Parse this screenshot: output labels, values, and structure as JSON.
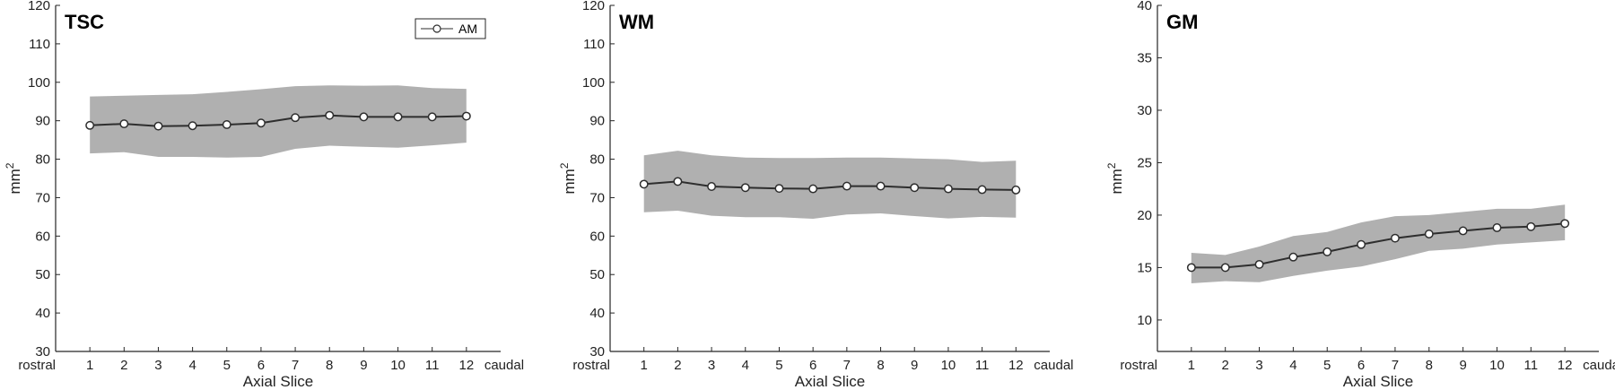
{
  "chart_data": [
    {
      "type": "line",
      "title": "TSC",
      "xlabel": "Axial Slice",
      "ylabel": "mm",
      "ylabel_superscript": "2",
      "x": [
        1,
        2,
        3,
        4,
        5,
        6,
        7,
        8,
        9,
        10,
        11,
        12
      ],
      "x_tick_labels": [
        "1",
        "2",
        "3",
        "4",
        "5",
        "6",
        "7",
        "8",
        "9",
        "10",
        "11",
        "12"
      ],
      "x_left_label": "rostral",
      "x_right_label": "caudal",
      "xlim": [
        0,
        13
      ],
      "ylim": [
        30,
        120
      ],
      "yticks": [
        30,
        40,
        50,
        60,
        70,
        80,
        90,
        100,
        110,
        120
      ],
      "legend": {
        "label": "AM",
        "placement": "top-right"
      },
      "series": [
        {
          "name": "AM",
          "values": [
            88.8,
            89.2,
            88.6,
            88.7,
            89.0,
            89.4,
            90.8,
            91.4,
            91.0,
            91.0,
            91.0,
            91.2
          ],
          "band_upper": [
            96.3,
            96.5,
            96.7,
            96.9,
            97.5,
            98.2,
            99.0,
            99.2,
            99.1,
            99.2,
            98.5,
            98.3
          ],
          "band_lower": [
            81.5,
            81.8,
            80.6,
            80.6,
            80.4,
            80.6,
            82.7,
            83.5,
            83.2,
            83.0,
            83.6,
            84.3
          ]
        }
      ]
    },
    {
      "type": "line",
      "title": "WM",
      "xlabel": "Axial Slice",
      "ylabel": "mm",
      "ylabel_superscript": "2",
      "x": [
        1,
        2,
        3,
        4,
        5,
        6,
        7,
        8,
        9,
        10,
        11,
        12
      ],
      "x_tick_labels": [
        "1",
        "2",
        "3",
        "4",
        "5",
        "6",
        "7",
        "8",
        "9",
        "10",
        "11",
        "12"
      ],
      "x_left_label": "rostral",
      "x_right_label": "caudal",
      "xlim": [
        0,
        13
      ],
      "ylim": [
        30,
        120
      ],
      "yticks": [
        30,
        40,
        50,
        60,
        70,
        80,
        90,
        100,
        110,
        120
      ],
      "series": [
        {
          "name": "AM",
          "values": [
            73.5,
            74.2,
            72.9,
            72.6,
            72.4,
            72.3,
            73.0,
            73.0,
            72.6,
            72.3,
            72.1,
            72.0
          ],
          "band_upper": [
            81.0,
            82.2,
            81.0,
            80.4,
            80.3,
            80.3,
            80.4,
            80.4,
            80.2,
            80.0,
            79.3,
            79.6
          ],
          "band_lower": [
            66.2,
            66.6,
            65.3,
            64.9,
            64.9,
            64.5,
            65.6,
            65.9,
            65.2,
            64.6,
            65.0,
            64.8
          ]
        }
      ]
    },
    {
      "type": "line",
      "title": "GM",
      "xlabel": "Axial Slice",
      "ylabel": "mm",
      "ylabel_superscript": "2",
      "x": [
        1,
        2,
        3,
        4,
        5,
        6,
        7,
        8,
        9,
        10,
        11,
        12
      ],
      "x_tick_labels": [
        "1",
        "2",
        "3",
        "4",
        "5",
        "6",
        "7",
        "8",
        "9",
        "10",
        "11",
        "12"
      ],
      "x_left_label": "rostral",
      "x_right_label": "caudal",
      "xlim": [
        0,
        13
      ],
      "ylim": [
        7,
        40
      ],
      "yticks": [
        10,
        15,
        20,
        25,
        30,
        35,
        40
      ],
      "series": [
        {
          "name": "AM",
          "values": [
            15.0,
            15.0,
            15.3,
            16.0,
            16.5,
            17.2,
            17.8,
            18.2,
            18.5,
            18.8,
            18.9,
            19.2
          ],
          "band_upper": [
            16.4,
            16.2,
            17.0,
            18.0,
            18.4,
            19.3,
            19.9,
            20.0,
            20.3,
            20.6,
            20.6,
            21.0
          ],
          "band_lower": [
            13.5,
            13.7,
            13.6,
            14.2,
            14.7,
            15.1,
            15.8,
            16.6,
            16.8,
            17.2,
            17.4,
            17.6
          ]
        }
      ]
    }
  ],
  "colors": {
    "band": "#b0b0b0",
    "line": "#2e2e2e",
    "axis": "#262626",
    "marker_fill": "#ffffff"
  }
}
